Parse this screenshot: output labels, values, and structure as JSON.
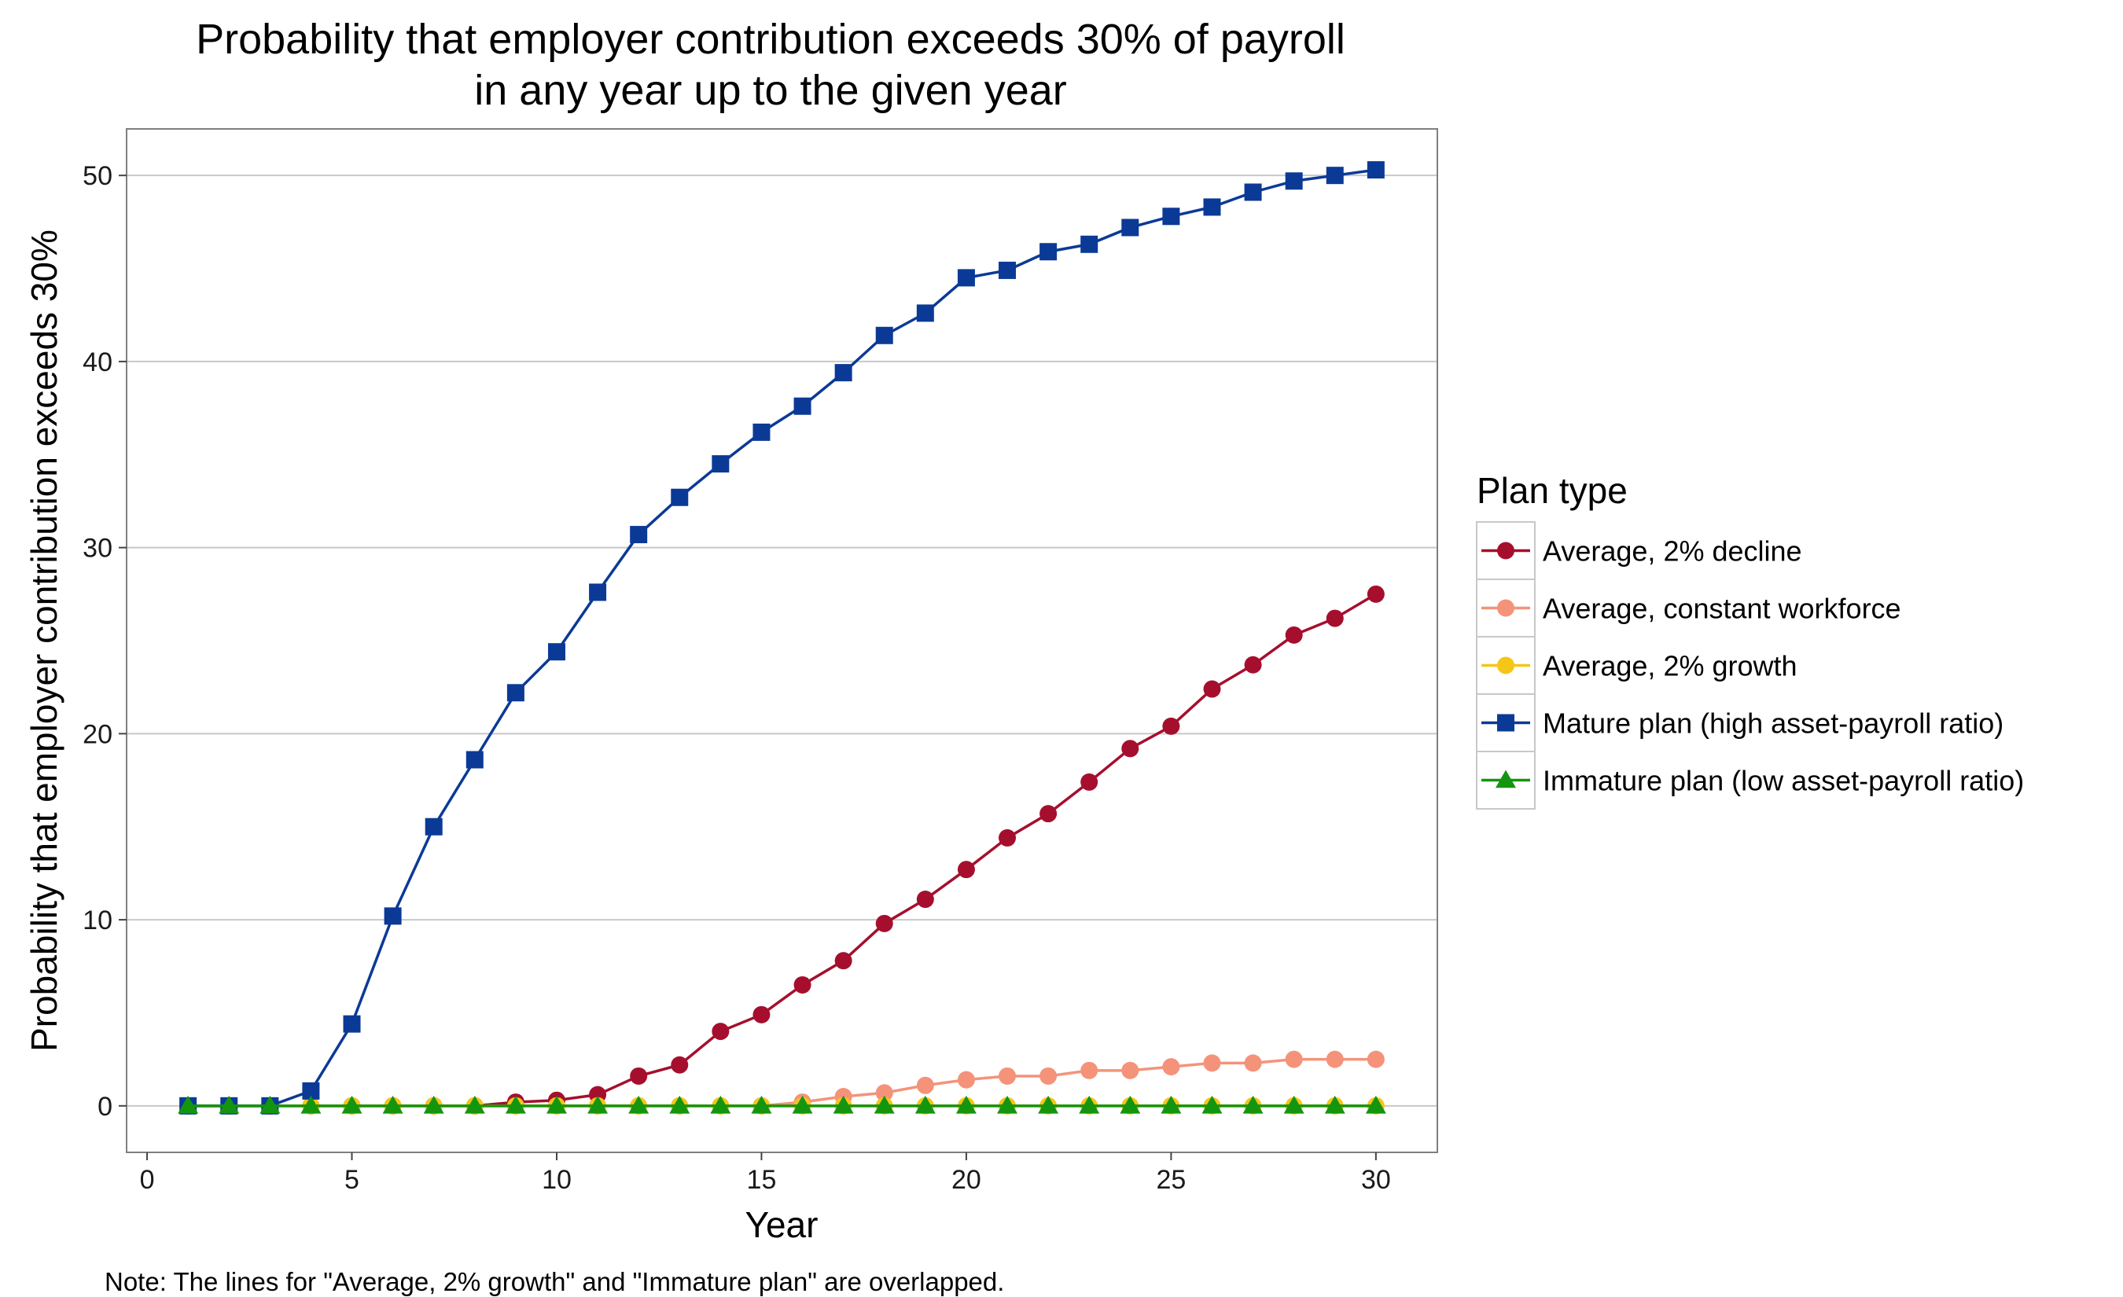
{
  "chart_data": {
    "type": "line",
    "title": [
      "Probability that employer contribution exceeds 30% of payroll",
      "in any year up to the given year"
    ],
    "xlabel": "Year",
    "ylabel": "Probability that employer contribution exceeds 30%",
    "xlim": [
      -0.5,
      31.5
    ],
    "ylim": [
      -2.5,
      52.5
    ],
    "x_ticks": [
      0,
      5,
      10,
      15,
      20,
      25,
      30
    ],
    "y_ticks": [
      0,
      10,
      20,
      30,
      40,
      50
    ],
    "grid": "horizontal major gridlines",
    "legend_title": "Plan type",
    "legend_placement": "right",
    "x": [
      1,
      2,
      3,
      4,
      5,
      6,
      7,
      8,
      9,
      10,
      11,
      12,
      13,
      14,
      15,
      16,
      17,
      18,
      19,
      20,
      21,
      22,
      23,
      24,
      25,
      26,
      27,
      28,
      29,
      30
    ],
    "series": [
      {
        "name": "Average, 2% decline",
        "color": "#a50f2d",
        "marker": "circle",
        "values": [
          0,
          0,
          0,
          0,
          0,
          0,
          0,
          0,
          0.2,
          0.3,
          0.6,
          1.6,
          2.2,
          4.0,
          4.9,
          6.5,
          7.8,
          9.8,
          11.1,
          12.7,
          14.4,
          15.7,
          17.4,
          19.2,
          20.4,
          22.4,
          23.7,
          25.3,
          26.2,
          27.5
        ]
      },
      {
        "name": "Average, constant workforce",
        "color": "#f4937a",
        "marker": "circle",
        "values": [
          0,
          0,
          0,
          0,
          0,
          0,
          0,
          0,
          0,
          0,
          0,
          0,
          0,
          0,
          0,
          0.2,
          0.5,
          0.7,
          1.1,
          1.4,
          1.6,
          1.6,
          1.9,
          1.9,
          2.1,
          2.3,
          2.3,
          2.5,
          2.5,
          2.5
        ]
      },
      {
        "name": "Average, 2% growth",
        "color": "#f5c518",
        "marker": "circle",
        "values": [
          0,
          0,
          0,
          0,
          0,
          0,
          0,
          0,
          0,
          0,
          0,
          0,
          0,
          0,
          0,
          0,
          0,
          0,
          0,
          0,
          0,
          0,
          0,
          0,
          0,
          0,
          0,
          0,
          0,
          0
        ]
      },
      {
        "name": "Mature plan (high asset-payroll ratio)",
        "color": "#0b3a96",
        "marker": "square",
        "values": [
          0,
          0,
          0,
          0.8,
          4.4,
          10.2,
          15.0,
          18.6,
          22.2,
          24.4,
          27.6,
          30.7,
          32.7,
          34.5,
          36.2,
          37.6,
          39.4,
          41.4,
          42.6,
          44.5,
          44.9,
          45.9,
          46.3,
          47.2,
          47.8,
          48.3,
          49.1,
          49.7,
          50.0,
          50.3
        ]
      },
      {
        "name": "Immature plan (low asset-payroll ratio)",
        "color": "#14950e",
        "marker": "triangle",
        "values": [
          0,
          0,
          0,
          0,
          0,
          0,
          0,
          0,
          0,
          0,
          0,
          0,
          0,
          0,
          0,
          0,
          0,
          0,
          0,
          0,
          0,
          0,
          0,
          0,
          0,
          0,
          0,
          0,
          0,
          0
        ]
      }
    ],
    "note": "Note: The lines for \"Average, 2% growth\" and \"Immature plan\" are overlapped."
  }
}
